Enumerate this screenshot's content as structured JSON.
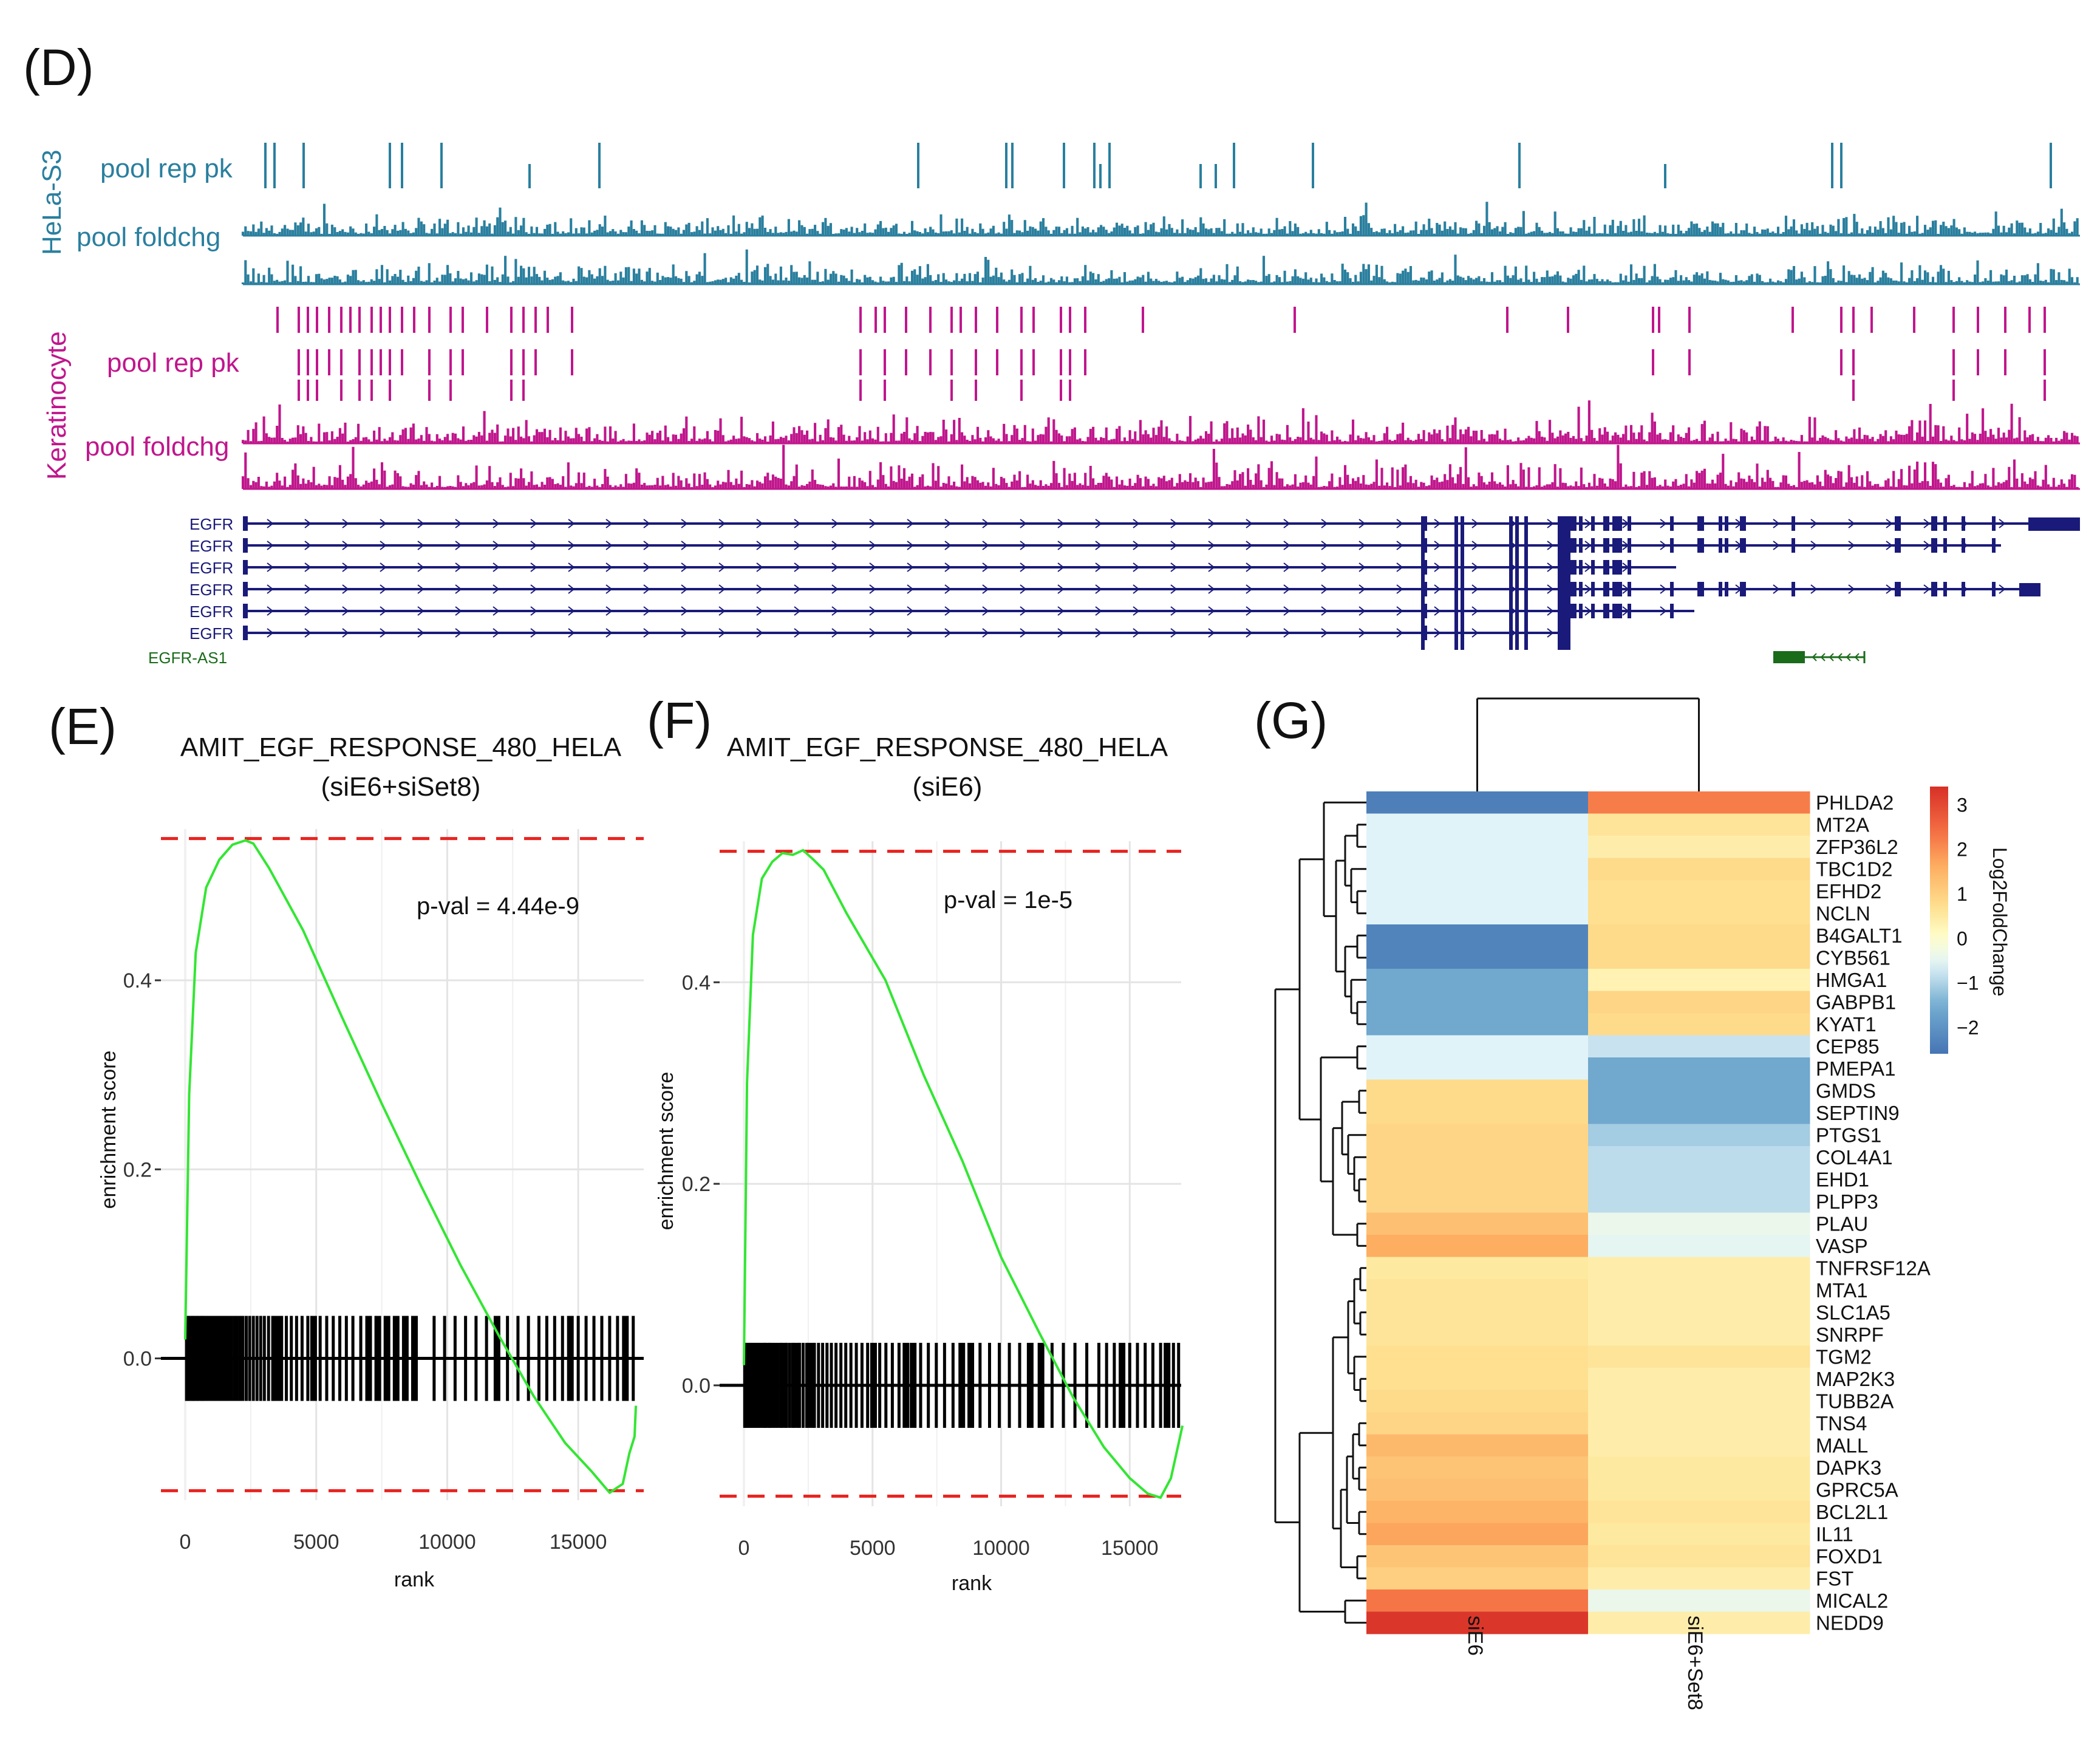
{
  "panel_d": {
    "panel_label": "(D)",
    "hela": {
      "group_label": "HeLa-S3",
      "peak_label": "pool rep pk",
      "fold_label": "pool foldchg",
      "color": "#2a7f9e"
    },
    "keratinocyte": {
      "group_label": "Keratinocyte",
      "peak_label": "pool rep pk",
      "fold_label": "pool foldchg",
      "color": "#c0168c"
    },
    "genes": [
      "EGFR",
      "EGFR",
      "EGFR",
      "EGFR",
      "EGFR",
      "EGFR"
    ],
    "antisense_gene": "EGFR-AS1",
    "gene_color": "#1a1a7a",
    "antisense_color": "#1a6b1a"
  },
  "panel_e": {
    "panel_label": "(E)",
    "title_line1": "AMIT_EGF_RESPONSE_480_HELA",
    "title_line2": "(siE6+siSet8)",
    "pval": "p-val = 4.44e-9",
    "xlabel": "rank",
    "ylabel": "enrichment score",
    "x_ticks": [
      "0",
      "5000",
      "10000",
      "15000"
    ],
    "y_ticks": [
      "0.0",
      "0.2",
      "0.4"
    ]
  },
  "panel_f": {
    "panel_label": "(F)",
    "title_line1": "AMIT_EGF_RESPONSE_480_HELA",
    "title_line2": "(siE6)",
    "pval": "p-val = 1e-5",
    "xlabel": "rank",
    "ylabel": "enrichment score",
    "x_ticks": [
      "0",
      "5000",
      "10000",
      "15000"
    ],
    "y_ticks": [
      "0.0",
      "0.2",
      "0.4"
    ]
  },
  "panel_g": {
    "panel_label": "(G)",
    "legend_title": "Log2FoldChange",
    "legend_ticks": [
      "3",
      "2",
      "1",
      "0",
      "−1",
      "−2"
    ],
    "columns": [
      "siE6",
      "siE6+Set8"
    ]
  },
  "chart_data": [
    {
      "type": "line",
      "title": "AMIT_EGF_RESPONSE_480_HELA (siE6+siSet8)",
      "xlabel": "rank",
      "ylabel": "enrichment score",
      "xlim": [
        0,
        17500
      ],
      "ylim": [
        -0.15,
        0.56
      ],
      "annotation": "p-val = 4.44e-9",
      "max_es": 0.55,
      "min_es": -0.14,
      "series": [
        {
          "name": "running enrichment score",
          "x": [
            0,
            150,
            400,
            800,
            1300,
            1800,
            2300,
            2600,
            3200,
            4500,
            6000,
            7500,
            9000,
            10500,
            12000,
            13300,
            14500,
            15500,
            16200,
            16700,
            16950,
            17150,
            17200
          ],
          "y": [
            0.02,
            0.28,
            0.43,
            0.5,
            0.53,
            0.545,
            0.55,
            0.545,
            0.52,
            0.45,
            0.36,
            0.27,
            0.18,
            0.1,
            0.02,
            -0.04,
            -0.09,
            -0.12,
            -0.14,
            -0.13,
            -0.1,
            -0.08,
            -0.05
          ]
        }
      ],
      "hit_ranks": [
        50,
        130,
        210,
        290,
        370,
        460,
        560,
        640,
        720,
        810,
        900,
        1000,
        1090,
        1180,
        1270,
        1360,
        1450,
        1550,
        1650,
        1760,
        1870,
        1980,
        2090,
        2200,
        2330,
        2460,
        2600,
        2740,
        2880,
        3020,
        3180,
        3340,
        3500,
        3680,
        3860,
        4050,
        4250,
        4460,
        4680,
        4900,
        5150,
        5400,
        5650,
        5900,
        6150,
        6400,
        6700,
        7000,
        7350,
        7700,
        8050,
        8400,
        8750,
        9500,
        9900,
        10300,
        10700,
        11100,
        11500,
        11900,
        12300,
        12700,
        13100,
        13500,
        13800,
        14100,
        14400,
        14700,
        15000,
        15300,
        15600,
        15900,
        16200,
        16500,
        16800,
        17100
      ]
    },
    {
      "type": "line",
      "title": "AMIT_EGF_RESPONSE_480_HELA (siE6)",
      "xlabel": "rank",
      "ylabel": "enrichment score",
      "xlim": [
        0,
        17000
      ],
      "ylim": [
        -0.12,
        0.54
      ],
      "annotation": "p-val = 1e-5",
      "max_es": 0.53,
      "min_es": -0.11,
      "series": [
        {
          "name": "running enrichment score",
          "x": [
            0,
            120,
            350,
            700,
            1100,
            1500,
            1900,
            2300,
            2700,
            3100,
            4000,
            5500,
            7000,
            8500,
            10000,
            11500,
            12800,
            14000,
            15000,
            15700,
            16200,
            16600,
            16900,
            17050
          ],
          "y": [
            0.02,
            0.3,
            0.45,
            0.5,
            0.52,
            0.53,
            0.525,
            0.53,
            0.52,
            0.51,
            0.47,
            0.4,
            0.31,
            0.22,
            0.13,
            0.05,
            -0.01,
            -0.06,
            -0.09,
            -0.11,
            -0.11,
            -0.09,
            -0.06,
            -0.04
          ]
        }
      ],
      "hit_ranks": [
        30,
        100,
        170,
        240,
        310,
        390,
        470,
        550,
        640,
        730,
        820,
        910,
        1010,
        1110,
        1210,
        1320,
        1430,
        1540,
        1660,
        1780,
        1900,
        2030,
        2160,
        2300,
        2440,
        2590,
        2740,
        2900,
        3060,
        3230,
        3400,
        3580,
        3770,
        3960,
        4160,
        4370,
        4590,
        4810,
        5040,
        5280,
        5520,
        5770,
        6030,
        6300,
        6580,
        6870,
        7170,
        7480,
        7800,
        8130,
        8470,
        8820,
        9180,
        9550,
        9930,
        10320,
        10720,
        11130,
        11550,
        11980,
        12420,
        12870,
        13330,
        13800,
        14100,
        14400,
        14700,
        15000,
        15300,
        15600,
        15900,
        16200,
        16450,
        16700,
        16900
      ]
    },
    {
      "type": "heatmap",
      "title": "",
      "legend": "Log2FoldChange",
      "scale_min": -2.6,
      "scale_max": 3.4,
      "columns": [
        "siE6",
        "siE6+Set8"
      ],
      "rows": [
        "PHLDA2",
        "MT2A",
        "ZFP36L2",
        "TBC1D2",
        "EFHD2",
        "NCLN",
        "B4GALT1",
        "CYB561",
        "HMGA1",
        "GABPB1",
        "KYAT1",
        "CEP85",
        "PMEPA1",
        "GMDS",
        "SEPTIN9",
        "PTGS1",
        "COL4A1",
        "EHD1",
        "PLPP3",
        "PLAU",
        "VASP",
        "TNFRSF12A",
        "MTA1",
        "SLC1A5",
        "SNRPF",
        "TGM2",
        "MAP2K3",
        "TUBB2A",
        "TNS4",
        "MALL",
        "DAPK3",
        "GPRC5A",
        "BCL2L1",
        "IL11",
        "FOXD1",
        "FST",
        "MICAL2",
        "NEDD9"
      ],
      "values": [
        [
          -2.4,
          2.2
        ],
        [
          -0.6,
          0.6
        ],
        [
          -0.6,
          0.4
        ],
        [
          -0.6,
          0.8
        ],
        [
          -0.6,
          0.7
        ],
        [
          -0.6,
          0.7
        ],
        [
          -2.3,
          0.8
        ],
        [
          -2.3,
          0.8
        ],
        [
          -1.6,
          0.3
        ],
        [
          -1.6,
          0.9
        ],
        [
          -1.6,
          0.8
        ],
        [
          -0.6,
          -0.8
        ],
        [
          -0.6,
          -1.6
        ],
        [
          0.8,
          -1.6
        ],
        [
          0.8,
          -1.6
        ],
        [
          0.9,
          -1.1
        ],
        [
          0.9,
          -0.9
        ],
        [
          0.9,
          -0.9
        ],
        [
          0.9,
          -0.9
        ],
        [
          1.3,
          -0.4
        ],
        [
          1.6,
          -0.5
        ],
        [
          0.5,
          0.4
        ],
        [
          0.6,
          0.4
        ],
        [
          0.6,
          0.4
        ],
        [
          0.6,
          0.4
        ],
        [
          0.7,
          0.6
        ],
        [
          0.7,
          0.4
        ],
        [
          0.8,
          0.4
        ],
        [
          0.9,
          0.4
        ],
        [
          1.4,
          0.4
        ],
        [
          1.2,
          0.5
        ],
        [
          1.3,
          0.5
        ],
        [
          1.5,
          0.6
        ],
        [
          1.7,
          0.5
        ],
        [
          1.2,
          0.6
        ],
        [
          1.0,
          0.4
        ],
        [
          2.3,
          -0.4
        ],
        [
          3.3,
          0.4
        ]
      ]
    }
  ]
}
